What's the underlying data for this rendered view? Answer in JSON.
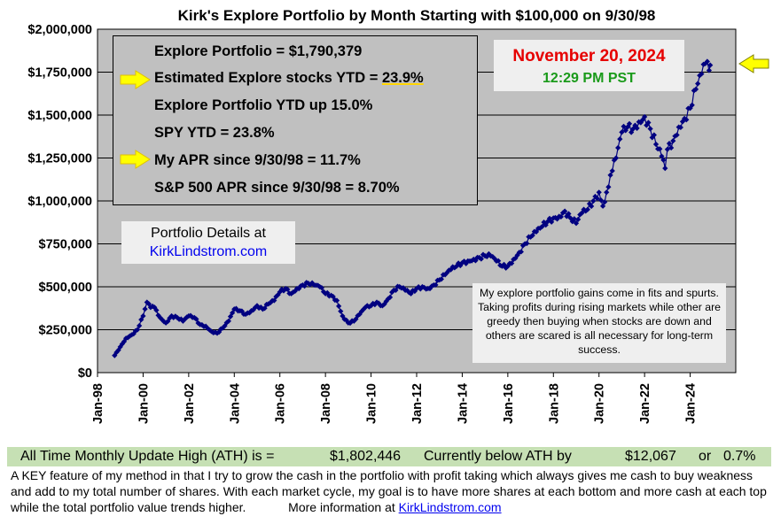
{
  "colors": {
    "plot_bg": "#c0c0c0",
    "series": "#000080",
    "arrow": "#ffff00",
    "date_red": "#e60000",
    "time_green": "#1a9a1a",
    "ath_bar": "#c6e0b4",
    "link": "#0000ee"
  },
  "legend": {
    "portfolio": "Explore Portfolio  =  $1,790,379",
    "ytd_est_label": "Estimated Explore stocks YTD =",
    "ytd_est_value": "23.9%",
    "portfolio_ytd": "Explore Portfolio YTD up 15.0%",
    "spy_ytd": "SPY YTD =  23.8%",
    "my_apr": "My APR since 9/30/98 =  11.7%",
    "sp_apr": "S&P 500 APR since 9/30/98 =  8.70%"
  },
  "date_box": {
    "date": "November 20, 2024",
    "time": "12:29 PM PST"
  },
  "details": {
    "line1": "Portfolio Details at",
    "link": "KirkLindstrom.com"
  },
  "note": "My explore portfolio gains come in fits and spurts. Taking profits during rising markets while other are greedy then buying when stocks are down and others are scared is all necessary for long-term success.",
  "ath": {
    "label": "All Time Monthly Update High (ATH) is =",
    "value": "$1,802,446",
    "below_label": "Currently below ATH by",
    "below_value": "$12,067",
    "or": "or",
    "pct": "0.7%"
  },
  "footer": {
    "text": "A KEY feature of my method in that I try to grow the cash in the portfolio with profit taking which always gives me cash to buy weakness and add to my total number of shares.  With each market cycle, my goal is to have more shares at each bottom and more cash at each top while the total portfolio value trends higher.",
    "more_info": "More information at",
    "link": "KirkLindstrom.com"
  },
  "chart_data": {
    "type": "line",
    "title": "Kirk's Explore Portfolio by Month Starting with $100,000 on 9/30/98",
    "xlabel": "",
    "ylabel": "",
    "ylim": [
      0,
      2000000
    ],
    "yticks": [
      0,
      250000,
      500000,
      750000,
      1000000,
      1250000,
      1500000,
      1750000,
      2000000
    ],
    "ytick_labels": [
      "$0",
      "$250,000",
      "$500,000",
      "$750,000",
      "$1,000,000",
      "$1,250,000",
      "$1,500,000",
      "$1,750,000",
      "$2,000,000"
    ],
    "xlim": [
      1998.0,
      2026.0
    ],
    "xtick_labels": [
      "Jan-98",
      "Jan-00",
      "Jan-02",
      "Jan-04",
      "Jan-06",
      "Jan-08",
      "Jan-10",
      "Jan-12",
      "Jan-14",
      "Jan-16",
      "Jan-18",
      "Jan-20",
      "Jan-22",
      "Jan-24"
    ],
    "xtick_values": [
      1998,
      2000,
      2002,
      2004,
      2006,
      2008,
      2010,
      2012,
      2014,
      2016,
      2018,
      2020,
      2022,
      2024
    ],
    "grid": "horizontal",
    "series": [
      {
        "name": "Explore Portfolio",
        "anchors": [
          [
            1998.75,
            100000
          ],
          [
            1999.0,
            150000
          ],
          [
            1999.25,
            200000
          ],
          [
            1999.5,
            220000
          ],
          [
            1999.75,
            250000
          ],
          [
            2000.0,
            330000
          ],
          [
            2000.17,
            410000
          ],
          [
            2000.33,
            380000
          ],
          [
            2000.5,
            380000
          ],
          [
            2000.75,
            320000
          ],
          [
            2001.0,
            290000
          ],
          [
            2001.25,
            330000
          ],
          [
            2001.5,
            320000
          ],
          [
            2001.75,
            300000
          ],
          [
            2002.0,
            330000
          ],
          [
            2002.25,
            320000
          ],
          [
            2002.5,
            280000
          ],
          [
            2002.75,
            270000
          ],
          [
            2003.0,
            240000
          ],
          [
            2003.25,
            230000
          ],
          [
            2003.5,
            260000
          ],
          [
            2003.75,
            300000
          ],
          [
            2004.0,
            370000
          ],
          [
            2004.25,
            360000
          ],
          [
            2004.5,
            340000
          ],
          [
            2004.75,
            360000
          ],
          [
            2005.0,
            390000
          ],
          [
            2005.25,
            370000
          ],
          [
            2005.5,
            400000
          ],
          [
            2005.75,
            420000
          ],
          [
            2006.0,
            470000
          ],
          [
            2006.25,
            490000
          ],
          [
            2006.5,
            460000
          ],
          [
            2006.75,
            490000
          ],
          [
            2007.0,
            510000
          ],
          [
            2007.25,
            520000
          ],
          [
            2007.5,
            510000
          ],
          [
            2007.75,
            500000
          ],
          [
            2008.0,
            460000
          ],
          [
            2008.25,
            450000
          ],
          [
            2008.5,
            420000
          ],
          [
            2008.75,
            330000
          ],
          [
            2009.0,
            290000
          ],
          [
            2009.25,
            300000
          ],
          [
            2009.5,
            340000
          ],
          [
            2009.75,
            380000
          ],
          [
            2010.0,
            390000
          ],
          [
            2010.25,
            410000
          ],
          [
            2010.5,
            390000
          ],
          [
            2010.75,
            430000
          ],
          [
            2011.0,
            480000
          ],
          [
            2011.25,
            500000
          ],
          [
            2011.5,
            480000
          ],
          [
            2011.75,
            460000
          ],
          [
            2012.0,
            490000
          ],
          [
            2012.25,
            500000
          ],
          [
            2012.5,
            490000
          ],
          [
            2012.75,
            510000
          ],
          [
            2013.0,
            540000
          ],
          [
            2013.25,
            570000
          ],
          [
            2013.5,
            600000
          ],
          [
            2013.75,
            620000
          ],
          [
            2014.0,
            640000
          ],
          [
            2014.25,
            650000
          ],
          [
            2014.5,
            660000
          ],
          [
            2014.75,
            670000
          ],
          [
            2015.0,
            680000
          ],
          [
            2015.25,
            680000
          ],
          [
            2015.5,
            650000
          ],
          [
            2015.75,
            620000
          ],
          [
            2016.0,
            620000
          ],
          [
            2016.25,
            660000
          ],
          [
            2016.5,
            700000
          ],
          [
            2016.75,
            750000
          ],
          [
            2017.0,
            790000
          ],
          [
            2017.25,
            820000
          ],
          [
            2017.5,
            850000
          ],
          [
            2017.75,
            880000
          ],
          [
            2018.0,
            900000
          ],
          [
            2018.25,
            910000
          ],
          [
            2018.5,
            940000
          ],
          [
            2018.75,
            900000
          ],
          [
            2019.0,
            870000
          ],
          [
            2019.25,
            930000
          ],
          [
            2019.5,
            950000
          ],
          [
            2019.75,
            1000000
          ],
          [
            2020.0,
            1050000
          ],
          [
            2020.17,
            970000
          ],
          [
            2020.33,
            1050000
          ],
          [
            2020.5,
            1150000
          ],
          [
            2020.75,
            1250000
          ],
          [
            2021.0,
            1400000
          ],
          [
            2021.25,
            1430000
          ],
          [
            2021.5,
            1420000
          ],
          [
            2021.75,
            1460000
          ],
          [
            2022.0,
            1490000
          ],
          [
            2022.25,
            1420000
          ],
          [
            2022.5,
            1330000
          ],
          [
            2022.75,
            1260000
          ],
          [
            2022.9,
            1190000
          ],
          [
            2023.0,
            1300000
          ],
          [
            2023.25,
            1350000
          ],
          [
            2023.5,
            1430000
          ],
          [
            2023.75,
            1480000
          ],
          [
            2024.0,
            1540000
          ],
          [
            2024.25,
            1650000
          ],
          [
            2024.5,
            1740000
          ],
          [
            2024.67,
            1800000
          ],
          [
            2024.83,
            1760000
          ],
          [
            2024.88,
            1790379
          ]
        ]
      }
    ]
  }
}
